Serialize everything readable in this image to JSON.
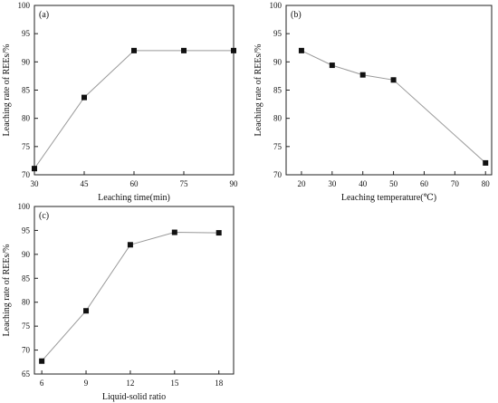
{
  "chart_data": [
    {
      "type": "line",
      "panel_label": "(a)",
      "xlabel": "Leaching time(min)",
      "ylabel": "Leaching rate of REEs/%",
      "x": [
        30,
        45,
        60,
        75,
        90
      ],
      "y": [
        71.1,
        83.7,
        92.0,
        92.0,
        92.0
      ],
      "xticks": [
        30,
        45,
        60,
        75,
        90
      ],
      "yticks": [
        70,
        75,
        80,
        85,
        90,
        95,
        100
      ],
      "xlim": [
        30,
        90
      ],
      "ylim": [
        70,
        100
      ],
      "grid": false,
      "line_color": "#999999",
      "marker": "filled square"
    },
    {
      "type": "line",
      "panel_label": "(b)",
      "xlabel": "Leaching temperature(℃)",
      "ylabel": "Leaching rate of REEs/%",
      "x": [
        20,
        30,
        40,
        50,
        80
      ],
      "y": [
        92.0,
        89.4,
        87.7,
        86.8,
        72.1
      ],
      "xticks": [
        20,
        30,
        40,
        50,
        60,
        70,
        80
      ],
      "yticks": [
        70,
        75,
        80,
        85,
        90,
        95,
        100
      ],
      "xlim": [
        15,
        82
      ],
      "ylim": [
        70,
        100
      ],
      "grid": false,
      "line_color": "#999999",
      "marker": "filled square"
    },
    {
      "type": "line",
      "panel_label": "(c)",
      "xlabel": "Liquid-solid ratio",
      "ylabel": "Leaching rate of REEs/%",
      "x": [
        6,
        9,
        12,
        15,
        18
      ],
      "y": [
        67.7,
        78.2,
        92.0,
        94.6,
        94.5
      ],
      "xticks": [
        6,
        9,
        12,
        15,
        18
      ],
      "yticks": [
        65,
        70,
        75,
        80,
        85,
        90,
        95,
        100
      ],
      "xlim": [
        5.5,
        19
      ],
      "ylim": [
        65,
        100
      ],
      "grid": false,
      "line_color": "#999999",
      "marker": "filled square"
    }
  ]
}
